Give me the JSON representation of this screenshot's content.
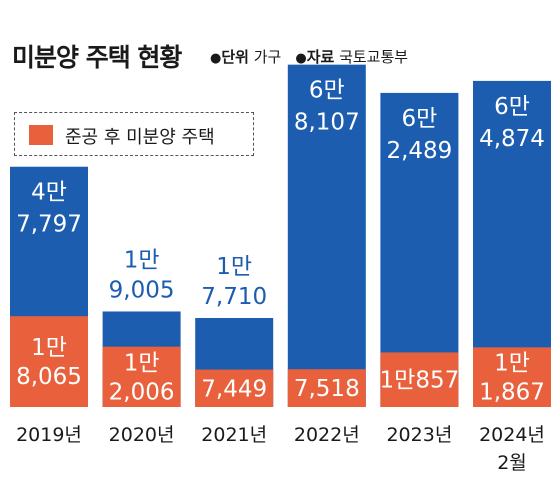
{
  "header": {
    "title": "미분양 주택 현황",
    "unit_key": "단위",
    "unit_value": "가구",
    "source_key": "자료",
    "source_value": "국토교통부"
  },
  "chart_data": {
    "type": "bar",
    "stacked": true,
    "title": "미분양 주택 현황",
    "categories": [
      "2019년",
      "2020년",
      "2021년",
      "2022년",
      "2023년",
      "2024년 2월"
    ],
    "category_lines": [
      [
        "2019년"
      ],
      [
        "2020년"
      ],
      [
        "2021년"
      ],
      [
        "2022년"
      ],
      [
        "2023년"
      ],
      [
        "2024년",
        "2월"
      ]
    ],
    "totals": [
      47797,
      19005,
      17710,
      68107,
      62489,
      64874
    ],
    "total_labels": [
      [
        "4만",
        "7,797"
      ],
      [
        "1만",
        "9,005"
      ],
      [
        "1만",
        "7,710"
      ],
      [
        "6만",
        "8,107"
      ],
      [
        "6만",
        "2,489"
      ],
      [
        "6만",
        "4,874"
      ]
    ],
    "series": [
      {
        "name": "준공 후 미분양 주택",
        "values": [
          18065,
          12006,
          7449,
          7518,
          10857,
          11867
        ],
        "labels": [
          [
            "1만",
            "8,065"
          ],
          [
            "1만",
            "2,006"
          ],
          [
            "7,449"
          ],
          [
            "7,518"
          ],
          [
            "1만857"
          ],
          [
            "1만",
            "1,867"
          ]
        ]
      }
    ],
    "ylim": [
      0,
      75000
    ],
    "grid": false,
    "legend_position": "top-left",
    "colors": {
      "total": "#1c5db0",
      "series": "#e8603c",
      "total_label": "#ffffff",
      "small_total_label": "#1c5db0",
      "series_label": "#ffffff"
    }
  }
}
